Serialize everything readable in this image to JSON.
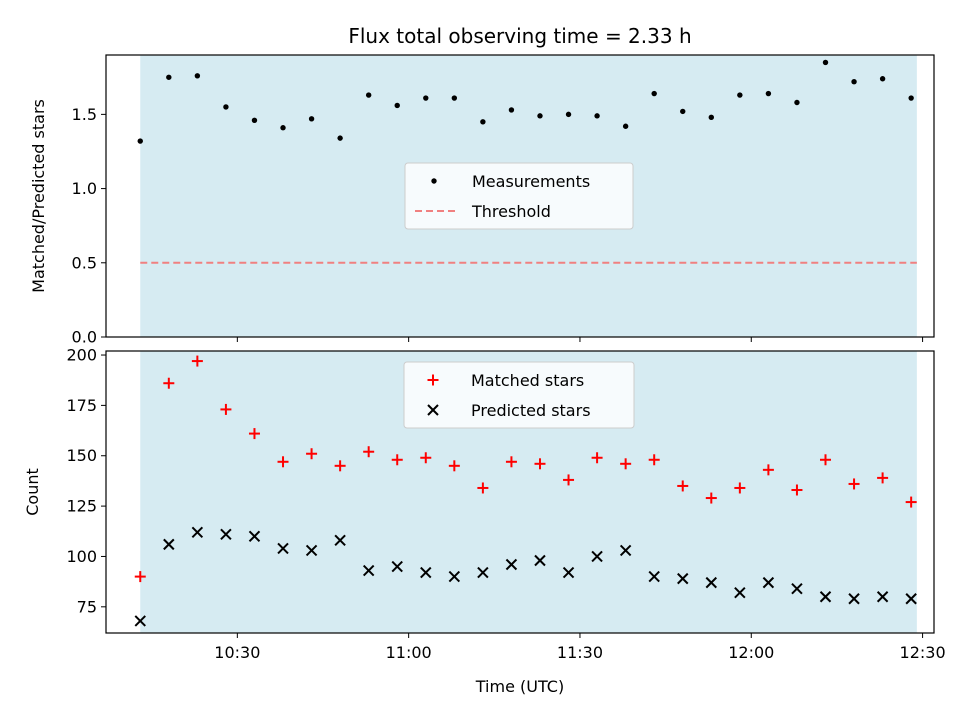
{
  "title": "Flux total observing time = 2.33 h",
  "xlabel": "Time (UTC)",
  "x_ticks": [
    "10:30",
    "11:00",
    "11:30",
    "12:00",
    "12:30"
  ],
  "colors": {
    "observing_band": "#add8e6",
    "measurements": "#000000",
    "threshold": "#f08080",
    "matched": "#ff0000",
    "predicted": "#000000"
  },
  "chart_data": [
    {
      "type": "scatter",
      "ylabel": "Matched/Predicted stars",
      "xlim": [
        "10:07",
        "12:32"
      ],
      "ylim": [
        0,
        1.9
      ],
      "y_ticks": [
        "0.0",
        "0.5",
        "1.0",
        "1.5"
      ],
      "observing_window": [
        "10:13",
        "12:29"
      ],
      "legend": {
        "position": "center",
        "entries": [
          "Measurements",
          "Threshold"
        ]
      },
      "x": [
        "10:13",
        "10:18",
        "10:23",
        "10:28",
        "10:33",
        "10:38",
        "10:43",
        "10:48",
        "10:53",
        "10:58",
        "11:03",
        "11:08",
        "11:13",
        "11:18",
        "11:23",
        "11:28",
        "11:33",
        "11:38",
        "11:43",
        "11:48",
        "11:53",
        "11:58",
        "12:03",
        "12:08",
        "12:13",
        "12:18",
        "12:23",
        "12:28"
      ],
      "series": [
        {
          "name": "Measurements",
          "values": [
            1.32,
            1.75,
            1.76,
            1.55,
            1.46,
            1.41,
            1.47,
            1.34,
            1.63,
            1.56,
            1.61,
            1.61,
            1.45,
            1.53,
            1.49,
            1.5,
            1.49,
            1.42,
            1.64,
            1.52,
            1.48,
            1.63,
            1.64,
            1.58,
            1.85,
            1.72,
            1.74,
            1.61
          ]
        },
        {
          "name": "Threshold",
          "type": "hline",
          "value": 0.5
        }
      ]
    },
    {
      "type": "scatter",
      "ylabel": "Count",
      "xlim": [
        "10:07",
        "12:32"
      ],
      "ylim": [
        62,
        202
      ],
      "y_ticks": [
        "75",
        "100",
        "125",
        "150",
        "175",
        "200"
      ],
      "observing_window": [
        "10:13",
        "12:29"
      ],
      "legend": {
        "position": "top-center",
        "entries": [
          "Matched stars",
          "Predicted stars"
        ]
      },
      "x": [
        "10:13",
        "10:18",
        "10:23",
        "10:28",
        "10:33",
        "10:38",
        "10:43",
        "10:48",
        "10:53",
        "10:58",
        "11:03",
        "11:08",
        "11:13",
        "11:18",
        "11:23",
        "11:28",
        "11:33",
        "11:38",
        "11:43",
        "11:48",
        "11:53",
        "11:58",
        "12:03",
        "12:08",
        "12:13",
        "12:18",
        "12:23",
        "12:28"
      ],
      "series": [
        {
          "name": "Matched stars",
          "marker": "+",
          "values": [
            90,
            186,
            197,
            173,
            161,
            147,
            151,
            145,
            152,
            148,
            149,
            145,
            134,
            147,
            146,
            138,
            149,
            146,
            148,
            135,
            129,
            134,
            143,
            133,
            148,
            136,
            139,
            127
          ]
        },
        {
          "name": "Predicted stars",
          "marker": "x",
          "values": [
            68,
            106,
            112,
            111,
            110,
            104,
            103,
            108,
            93,
            95,
            92,
            90,
            92,
            96,
            98,
            92,
            100,
            103,
            90,
            89,
            87,
            82,
            87,
            84,
            80,
            79,
            80,
            79
          ]
        }
      ]
    }
  ]
}
